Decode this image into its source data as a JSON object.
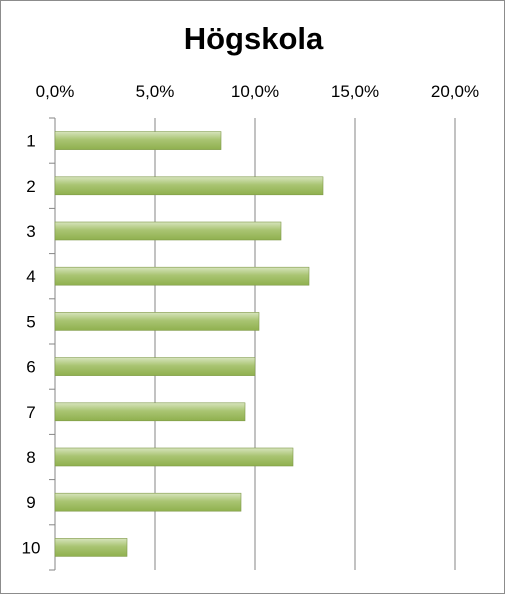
{
  "chart_data": {
    "type": "bar",
    "orientation": "horizontal",
    "title": "Högskola",
    "categories": [
      "1",
      "2",
      "3",
      "4",
      "5",
      "6",
      "7",
      "8",
      "9",
      "10"
    ],
    "values": [
      8.3,
      13.4,
      11.3,
      12.7,
      10.2,
      10.0,
      9.5,
      11.9,
      9.3,
      3.6
    ],
    "xlim": [
      0,
      20
    ],
    "x_ticks": [
      0,
      5,
      10,
      15,
      20
    ],
    "x_tick_labels": [
      "0,0%",
      "5,0%",
      "10,0%",
      "15,0%",
      "20,0%"
    ],
    "x_axis_position": "top",
    "grid": true,
    "legend": "none",
    "bar_color": "#9bbb59"
  }
}
